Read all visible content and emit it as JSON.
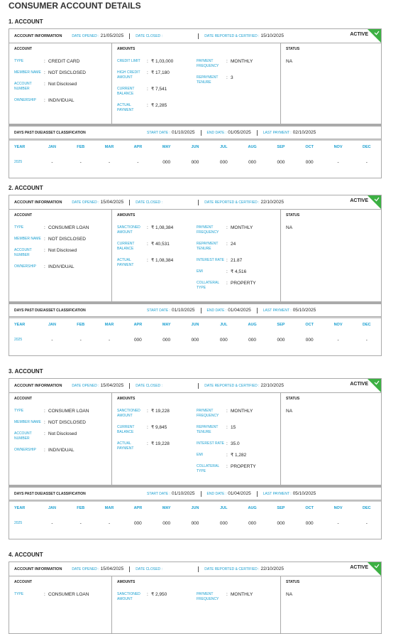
{
  "title": "CONSUMER ACCOUNT DETAILS",
  "sep": ":",
  "accounts": [
    {
      "heading": "1. ACCOUNT",
      "info": {
        "label": "ACCOUNT INFORMATION",
        "date_opened_label": "DATE OPENED :",
        "date_opened": "21/05/2025",
        "date_closed_label": "DATE CLOSED :",
        "date_reported_label": "DATE REPORTED & CERTIFIED :",
        "date_reported": "15/10/2025",
        "status": "ACTIVE"
      },
      "account": {
        "header": "ACCOUNT",
        "rows": [
          {
            "label": "TYPE",
            "value": "CREDIT CARD"
          },
          {
            "label": "MEMBER NAME",
            "value": "NOT DISCLOSED"
          },
          {
            "label": "ACCOUNT NUMBER",
            "value": "Not Disclosed"
          },
          {
            "label": "OWNERSHIP",
            "value": "INDIVIDUAL"
          }
        ]
      },
      "amounts": {
        "header": "AMOUNTS",
        "left": [
          {
            "label": "CREDIT LIMIT",
            "value": "₹ 1,03,000"
          },
          {
            "label": "HIGH CREDIT AMOUNT",
            "value": "₹ 17,180"
          },
          {
            "label": "CURRENT BALANCE",
            "value": "₹ 7,541"
          },
          {
            "label": "ACTUAL PAYMENT",
            "value": "₹ 2,285"
          }
        ],
        "right": [
          {
            "label": "PAYMENT FREQUENCY",
            "value": "MONTHLY"
          },
          {
            "label": "REPAYMENT TENURE",
            "value": "3"
          }
        ]
      },
      "status": {
        "header": "STATUS",
        "value": "NA"
      },
      "dpd": {
        "label": "DAYS PAST DUE/ASSET CLASSIFICATION",
        "start_label": "START DATE :",
        "start": "01/10/2025",
        "end_label": "END DATE :",
        "end": "01/05/2025",
        "last_label": "LAST PAYMENT :",
        "last": "02/10/2025",
        "headers": [
          "YEAR",
          "JAN",
          "FEB",
          "MAR",
          "APR",
          "MAY",
          "JUN",
          "JUL",
          "AUG",
          "SEP",
          "OCT",
          "NOV",
          "DEC"
        ],
        "values": [
          "2025",
          "-",
          "-",
          "-",
          "-",
          "000",
          "000",
          "000",
          "000",
          "000",
          "000",
          "-",
          "-"
        ]
      }
    },
    {
      "heading": "2. ACCOUNT",
      "info": {
        "label": "ACCOUNT INFORMATION",
        "date_opened_label": "DATE OPENED :",
        "date_opened": "15/04/2025",
        "date_closed_label": "DATE CLOSED :",
        "date_reported_label": "DATE REPORTED & CERTIFIED :",
        "date_reported": "22/10/2025",
        "status": "ACTIVE"
      },
      "account": {
        "header": "ACCOUNT",
        "rows": [
          {
            "label": "TYPE",
            "value": "CONSUMER LOAN"
          },
          {
            "label": "MEMBER NAME",
            "value": "NOT DISCLOSED"
          },
          {
            "label": "ACCOUNT NUMBER",
            "value": "Not Disclosed"
          },
          {
            "label": "OWNERSHIP",
            "value": "INDIVIDUAL"
          }
        ]
      },
      "amounts": {
        "header": "AMOUNTS",
        "left": [
          {
            "label": "SANCTIONED AMOUNT",
            "value": "₹ 1,08,384"
          },
          {
            "label": "CURRENT BALANCE",
            "value": "₹ 40,531"
          },
          {
            "label": "ACTUAL PAYMENT",
            "value": "₹ 1,08,384"
          }
        ],
        "right": [
          {
            "label": "PAYMENT FREQUENCY",
            "value": "MONTHLY"
          },
          {
            "label": "REPAYMENT TENURE",
            "value": "24"
          },
          {
            "label": "INTEREST RATE",
            "value": "21.87"
          },
          {
            "label": "EMI",
            "value": "₹ 4,516"
          },
          {
            "label": "COLLATERAL TYPE",
            "value": "PROPERTY"
          }
        ]
      },
      "status": {
        "header": "STATUS",
        "value": "NA"
      },
      "dpd": {
        "label": "DAYS PAST DUE/ASSET CLASSIFICATION",
        "start_label": "START DATE :",
        "start": "01/10/2025",
        "end_label": "END DATE :",
        "end": "01/04/2025",
        "last_label": "LAST PAYMENT :",
        "last": "05/10/2025",
        "headers": [
          "YEAR",
          "JAN",
          "FEB",
          "MAR",
          "APR",
          "MAY",
          "JUN",
          "JUL",
          "AUG",
          "SEP",
          "OCT",
          "NOV",
          "DEC"
        ],
        "values": [
          "2025",
          "-",
          "-",
          "-",
          "000",
          "000",
          "000",
          "000",
          "000",
          "000",
          "000",
          "-",
          "-"
        ]
      }
    },
    {
      "heading": "3. ACCOUNT",
      "info": {
        "label": "ACCOUNT INFORMATION",
        "date_opened_label": "DATE OPENED :",
        "date_opened": "15/04/2025",
        "date_closed_label": "DATE CLOSED :",
        "date_reported_label": "DATE REPORTED & CERTIFIED :",
        "date_reported": "22/10/2025",
        "status": "ACTIVE"
      },
      "account": {
        "header": "ACCOUNT",
        "rows": [
          {
            "label": "TYPE",
            "value": "CONSUMER LOAN"
          },
          {
            "label": "MEMBER NAME",
            "value": "NOT DISCLOSED"
          },
          {
            "label": "ACCOUNT NUMBER",
            "value": "Not Disclosed"
          },
          {
            "label": "OWNERSHIP",
            "value": "INDIVIDUAL"
          }
        ]
      },
      "amounts": {
        "header": "AMOUNTS",
        "left": [
          {
            "label": "SANCTIONED AMOUNT",
            "value": "₹ 19,228"
          },
          {
            "label": "CURRENT BALANCE",
            "value": "₹ 9,845"
          },
          {
            "label": "ACTUAL PAYMENT",
            "value": "₹ 19,228"
          }
        ],
        "right": [
          {
            "label": "PAYMENT FREQUENCY",
            "value": "MONTHLY"
          },
          {
            "label": "REPAYMENT TENURE",
            "value": "15"
          },
          {
            "label": "INTEREST RATE",
            "value": "35.0"
          },
          {
            "label": "EMI",
            "value": "₹ 1,282"
          },
          {
            "label": "COLLATERAL TYPE",
            "value": "PROPERTY"
          }
        ]
      },
      "status": {
        "header": "STATUS",
        "value": "NA"
      },
      "dpd": {
        "label": "DAYS PAST DUE/ASSET CLASSIFICATION",
        "start_label": "START DATE :",
        "start": "01/10/2025",
        "end_label": "END DATE :",
        "end": "01/04/2025",
        "last_label": "LAST PAYMENT :",
        "last": "05/10/2025",
        "headers": [
          "YEAR",
          "JAN",
          "FEB",
          "MAR",
          "APR",
          "MAY",
          "JUN",
          "JUL",
          "AUG",
          "SEP",
          "OCT",
          "NOV",
          "DEC"
        ],
        "values": [
          "2025",
          "-",
          "-",
          "-",
          "000",
          "000",
          "000",
          "000",
          "000",
          "000",
          "000",
          "-",
          "-"
        ]
      }
    },
    {
      "heading": "4. ACCOUNT",
      "info": {
        "label": "ACCOUNT INFORMATION",
        "date_opened_label": "DATE OPENED :",
        "date_opened": "15/04/2025",
        "date_closed_label": "DATE CLOSED :",
        "date_reported_label": "DATE REPORTED & CERTIFIED :",
        "date_reported": "22/10/2025",
        "status": "ACTIVE"
      },
      "account": {
        "header": "ACCOUNT",
        "rows": [
          {
            "label": "TYPE",
            "value": "CONSUMER LOAN"
          }
        ]
      },
      "amounts": {
        "header": "AMOUNTS",
        "left": [
          {
            "label": "SANCTIONED AMOUNT",
            "value": "₹ 2,950"
          }
        ],
        "right": [
          {
            "label": "PAYMENT FREQUENCY",
            "value": "MONTHLY"
          }
        ]
      },
      "status": {
        "header": "STATUS",
        "value": "NA"
      }
    }
  ]
}
